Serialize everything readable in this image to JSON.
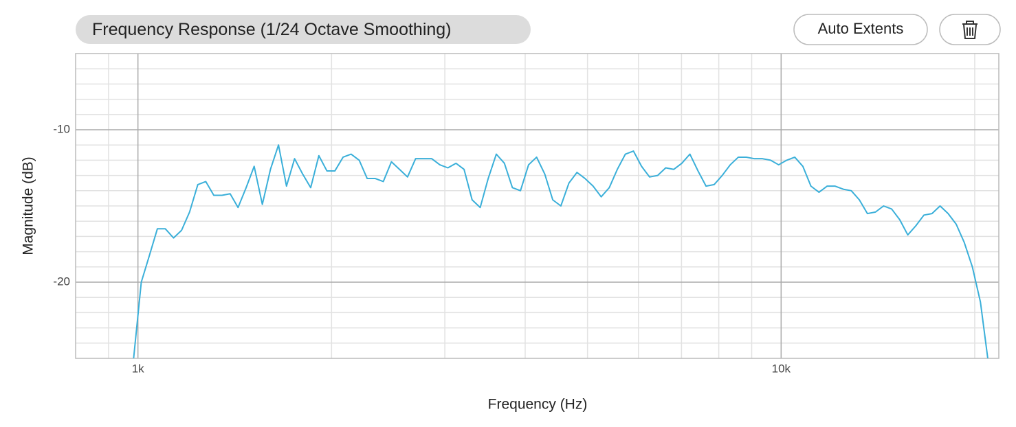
{
  "toolbar": {
    "buttons": [
      "Auto Extents"
    ]
  },
  "chart_data": {
    "type": "line",
    "title": "Frequency Response",
    "subtitle": "(1/24 Octave Smoothing)",
    "x_label": "Frequency (Hz)",
    "y_label": "Magnitude (dB)",
    "log_x": true,
    "grid": true,
    "xlim": [
      800,
      21800
    ],
    "ylim": [
      -25,
      -5
    ],
    "xticks": [
      {
        "value": 1000,
        "label": "1k"
      },
      {
        "value": 10000,
        "label": "10k"
      }
    ],
    "yticks": [
      -10,
      -20
    ],
    "xminor": [
      900,
      2000,
      3000,
      4000,
      5000,
      6000,
      7000,
      8000,
      9000,
      20000
    ],
    "yminor": [
      -24,
      -23,
      -22,
      -21,
      -19,
      -18,
      -17,
      -16,
      -15,
      -14,
      -13,
      -12,
      -11,
      -9,
      -8,
      -7,
      -6
    ],
    "x": [
      983,
      1012,
      1041,
      1072,
      1103,
      1136,
      1169,
      1203,
      1239,
      1275,
      1312,
      1351,
      1391,
      1431,
      1473,
      1516,
      1561,
      1607,
      1654,
      1702,
      1752,
      1803,
      1856,
      1911,
      1967,
      2024,
      2084,
      2145,
      2208,
      2272,
      2339,
      2407,
      2478,
      2551,
      2625,
      2702,
      2781,
      2863,
      2947,
      3033,
      3122,
      3214,
      3308,
      3405,
      3504,
      3607,
      3713,
      3821,
      3933,
      4049,
      4167,
      4290,
      4415,
      4545,
      4678,
      4815,
      4956,
      5101,
      5251,
      5405,
      5563,
      5726,
      5894,
      6067,
      6244,
      6427,
      6616,
      6810,
      7009,
      7214,
      7426,
      7643,
      7867,
      8098,
      8335,
      8579,
      8830,
      9089,
      9356,
      9630,
      9912,
      10202,
      10501,
      10809,
      11126,
      11452,
      11788,
      12133,
      12489,
      12855,
      13232,
      13620,
      14019,
      14430,
      14853,
      15289,
      15737,
      16198,
      16673,
      17162,
      17665,
      18183,
      18716,
      19265,
      19830,
      20411,
      21000
    ],
    "series": [
      {
        "name": "Magnitude",
        "color": "#3aafd9",
        "values": [
          -25.3,
          -20.0,
          -18.3,
          -16.5,
          -16.5,
          -17.1,
          -16.6,
          -15.4,
          -13.6,
          -13.4,
          -14.3,
          -14.3,
          -14.2,
          -15.1,
          -13.8,
          -12.4,
          -14.9,
          -12.6,
          -11.0,
          -13.7,
          -11.9,
          -12.9,
          -13.8,
          -11.7,
          -12.7,
          -12.7,
          -11.8,
          -11.6,
          -12.0,
          -13.2,
          -13.2,
          -13.4,
          -12.1,
          -12.6,
          -13.1,
          -11.9,
          -11.9,
          -11.9,
          -12.3,
          -12.5,
          -12.2,
          -12.6,
          -14.6,
          -15.1,
          -13.2,
          -11.6,
          -12.2,
          -13.8,
          -14.0,
          -12.3,
          -11.8,
          -12.9,
          -14.6,
          -15.0,
          -13.5,
          -12.8,
          -13.2,
          -13.7,
          -14.4,
          -13.8,
          -12.6,
          -11.6,
          -11.4,
          -12.4,
          -13.1,
          -13.0,
          -12.5,
          -12.6,
          -12.2,
          -11.6,
          -12.7,
          -13.7,
          -13.6,
          -13.0,
          -12.3,
          -11.8,
          -11.8,
          -11.9,
          -11.9,
          -12.0,
          -12.3,
          -12.0,
          -11.8,
          -12.4,
          -13.7,
          -14.1,
          -13.7,
          -13.7,
          -13.9,
          -14.0,
          -14.6,
          -15.5,
          -15.4,
          -15.0,
          -15.2,
          -15.9,
          -16.9,
          -16.3,
          -15.6,
          -15.5,
          -15.0,
          -15.5,
          -16.2,
          -17.4,
          -19.0,
          -21.3,
          -25.3
        ]
      }
    ]
  }
}
